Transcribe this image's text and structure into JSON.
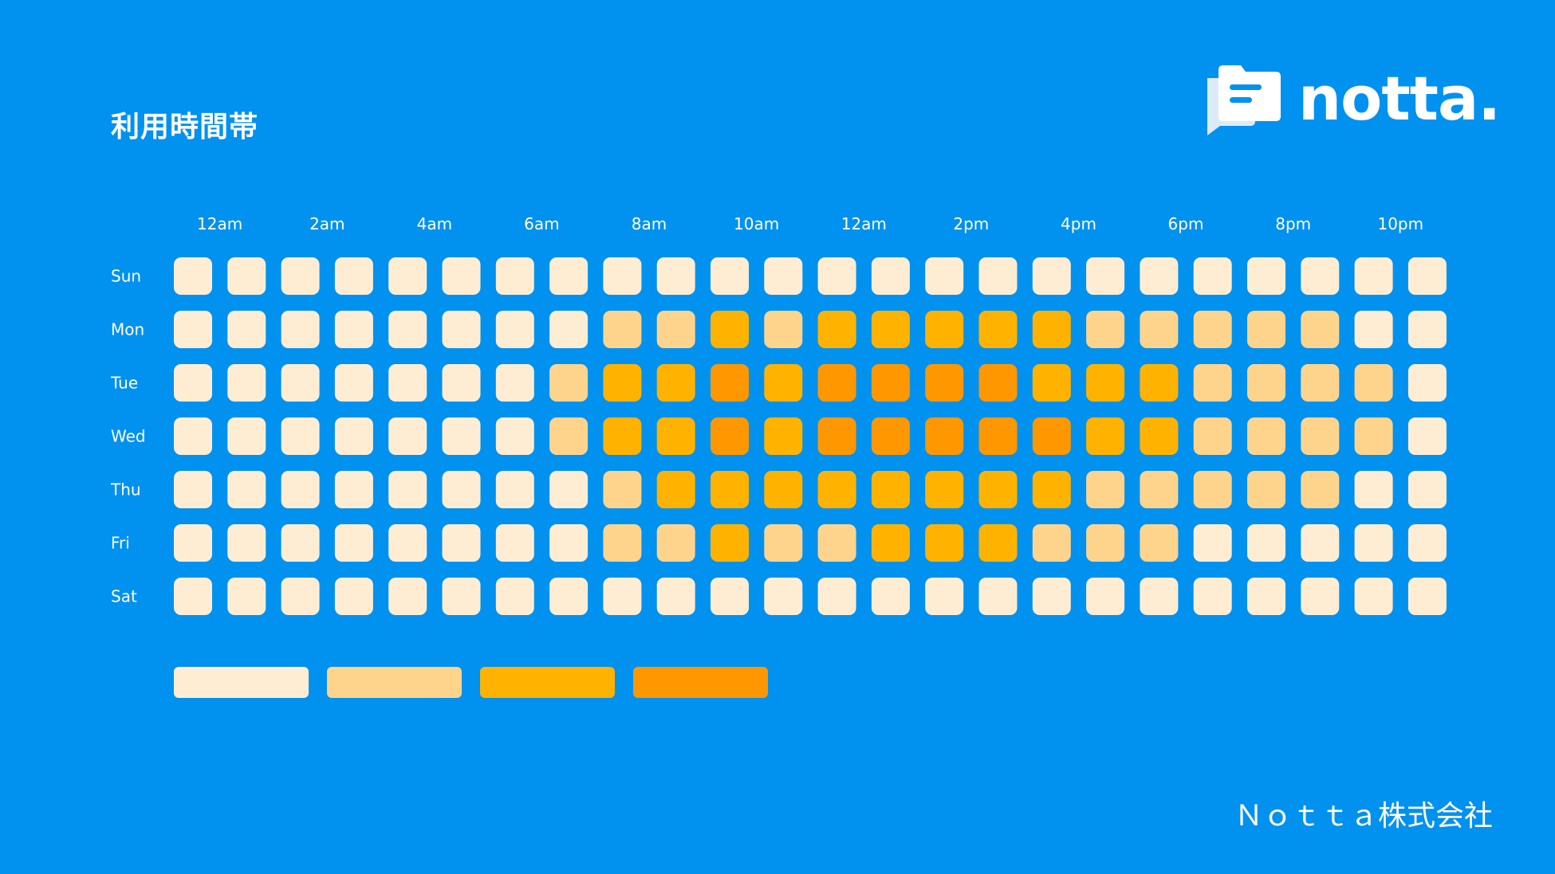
{
  "title": "利用時間帯",
  "brand": {
    "logo_text": "notta.",
    "logo_icon": "note-chat-icon",
    "company": "Ｎｏｔｔａ株式会社"
  },
  "colors": {
    "background": "#0191EF",
    "levels": [
      "#FEEDD2",
      "#FED48D",
      "#FFB300",
      "#FF9800"
    ]
  },
  "chart_data": {
    "type": "heatmap",
    "x_tick_labels": [
      "12am",
      "2am",
      "4am",
      "6am",
      "8am",
      "10am",
      "12am",
      "2pm",
      "4pm",
      "6pm",
      "8pm",
      "10pm"
    ],
    "rows": [
      "Sun",
      "Mon",
      "Tue",
      "Wed",
      "Thu",
      "Fri",
      "Sat"
    ],
    "columns": 24,
    "scale_levels": 4,
    "values": [
      [
        0,
        0,
        0,
        0,
        0,
        0,
        0,
        0,
        0,
        0,
        0,
        0,
        0,
        0,
        0,
        0,
        0,
        0,
        0,
        0,
        0,
        0,
        0,
        0
      ],
      [
        0,
        0,
        0,
        0,
        0,
        0,
        0,
        0,
        1,
        1,
        2,
        1,
        2,
        2,
        2,
        2,
        2,
        1,
        1,
        1,
        1,
        1,
        0,
        0
      ],
      [
        0,
        0,
        0,
        0,
        0,
        0,
        0,
        1,
        2,
        2,
        3,
        2,
        3,
        3,
        3,
        3,
        2,
        2,
        2,
        1,
        1,
        1,
        1,
        0
      ],
      [
        0,
        0,
        0,
        0,
        0,
        0,
        0,
        1,
        2,
        2,
        3,
        2,
        3,
        3,
        3,
        3,
        3,
        2,
        2,
        1,
        1,
        1,
        1,
        0
      ],
      [
        0,
        0,
        0,
        0,
        0,
        0,
        0,
        0,
        1,
        2,
        2,
        2,
        2,
        2,
        2,
        2,
        2,
        1,
        1,
        1,
        1,
        1,
        0,
        0
      ],
      [
        0,
        0,
        0,
        0,
        0,
        0,
        0,
        0,
        1,
        1,
        2,
        1,
        1,
        2,
        2,
        2,
        1,
        1,
        1,
        0,
        0,
        0,
        0,
        0
      ],
      [
        0,
        0,
        0,
        0,
        0,
        0,
        0,
        0,
        0,
        0,
        0,
        0,
        0,
        0,
        0,
        0,
        0,
        0,
        0,
        0,
        0,
        0,
        0,
        0
      ]
    ],
    "legend": [
      "",
      "",
      "",
      ""
    ]
  }
}
